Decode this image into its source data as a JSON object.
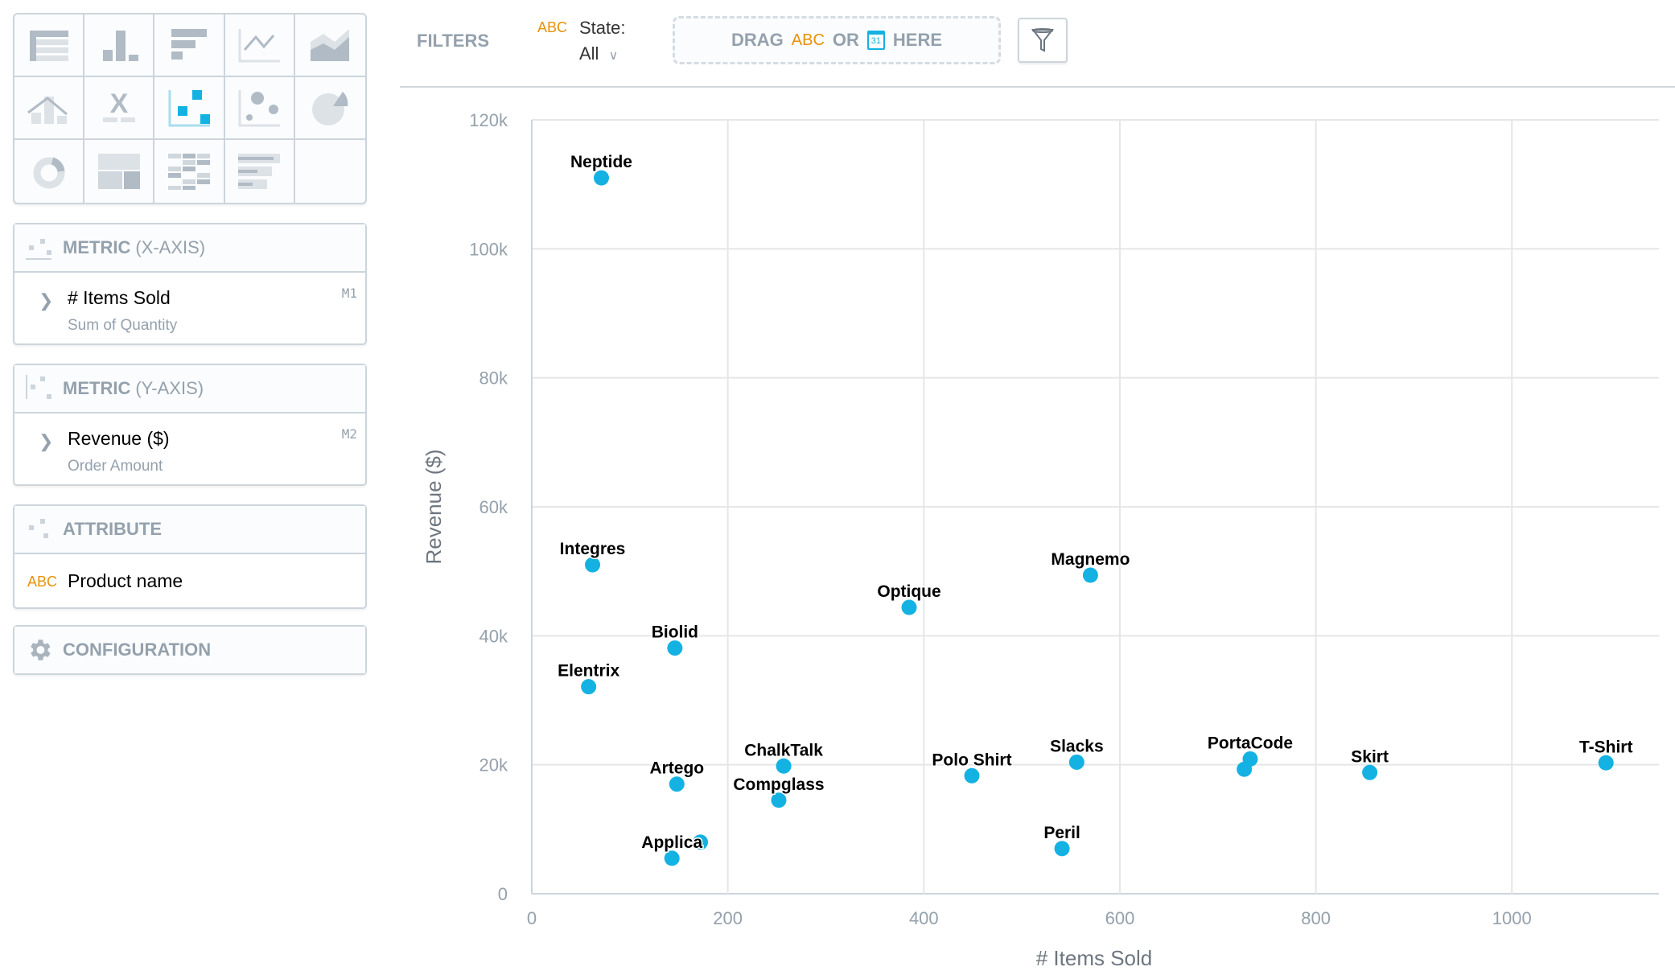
{
  "chart_types": [
    "table",
    "column",
    "bar",
    "line",
    "area",
    "combo",
    "headline",
    "scatter",
    "bubble",
    "pie",
    "donut",
    "treemap",
    "heatmap",
    "bullet"
  ],
  "chart_types_selected": "scatter",
  "accent_color": "#14b2e2",
  "panels": {
    "x_axis": {
      "title": "METRIC",
      "subtitle": "(X-AXIS)",
      "item": "# Items Sold",
      "item_sub": "Sum of Quantity",
      "tag": "M1"
    },
    "y_axis": {
      "title": "METRIC",
      "subtitle": "(Y-AXIS)",
      "item": "Revenue ($)",
      "item_sub": "Order Amount",
      "tag": "M2"
    },
    "attribute": {
      "title": "ATTRIBUTE",
      "type": "ABC",
      "item": "Product name"
    },
    "configuration": {
      "title": "CONFIGURATION"
    }
  },
  "filters": {
    "label": "FILTERS",
    "state_type": "ABC",
    "state_label": "State:",
    "state_value": "All",
    "drop_drag": "DRAG",
    "drop_abc": "ABC",
    "drop_or": "OR",
    "drop_cal": "31",
    "drop_here": "HERE"
  },
  "chart_data": {
    "type": "scatter",
    "xlabel": "# Items Sold",
    "ylabel": "Revenue ($)",
    "xlim": [
      0,
      1150
    ],
    "ylim": [
      0,
      120000
    ],
    "xticks": [
      0,
      200,
      400,
      600,
      800,
      1000
    ],
    "yticks": [
      0,
      20000,
      40000,
      60000,
      80000,
      100000,
      120000
    ],
    "ytick_labels": [
      "0",
      "20k",
      "40k",
      "60k",
      "80k",
      "100k",
      "120k"
    ],
    "grid": true,
    "points": [
      {
        "label": "Neptide",
        "x": 71,
        "y": 111000
      },
      {
        "label": "Integres",
        "x": 62,
        "y": 51000
      },
      {
        "label": "Biolid",
        "x": 146,
        "y": 38100
      },
      {
        "label": "Elentrix",
        "x": 58,
        "y": 32100
      },
      {
        "label": "Artego",
        "x": 148,
        "y": 17000
      },
      {
        "label": "Applica",
        "x": 143,
        "y": 5500
      },
      {
        "label": "",
        "x": 172,
        "y": 8000
      },
      {
        "label": "ChalkTalk",
        "x": 257,
        "y": 19800
      },
      {
        "label": "Compglass",
        "x": 252,
        "y": 14500
      },
      {
        "label": "Optique",
        "x": 385,
        "y": 44400
      },
      {
        "label": "Magnemo",
        "x": 570,
        "y": 49400
      },
      {
        "label": "Polo Shirt",
        "x": 449,
        "y": 18300
      },
      {
        "label": "Slacks",
        "x": 556,
        "y": 20400
      },
      {
        "label": "Peril",
        "x": 541,
        "y": 7000
      },
      {
        "label": "PortaCode",
        "x": 733,
        "y": 20900
      },
      {
        "label": "",
        "x": 727,
        "y": 19300
      },
      {
        "label": "Skirt",
        "x": 855,
        "y": 18800
      },
      {
        "label": "T-Shirt",
        "x": 1096,
        "y": 20300
      }
    ]
  }
}
